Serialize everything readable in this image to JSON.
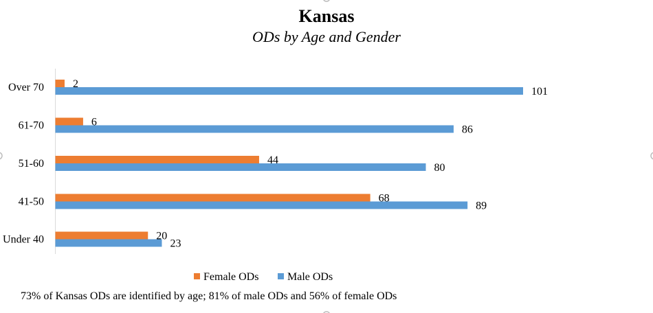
{
  "chart_data": {
    "type": "bar",
    "orientation": "horizontal",
    "title": "Kansas",
    "subtitle": "ODs by Age and Gender",
    "categories": [
      "Under 40",
      "41-50",
      "51-60",
      "61-70",
      "Over 70"
    ],
    "series": [
      {
        "name": "Female ODs",
        "color": "#ED7D31",
        "values": [
          20,
          68,
          44,
          6,
          2
        ]
      },
      {
        "name": "Male ODs",
        "color": "#5B9BD5",
        "values": [
          23,
          89,
          80,
          86,
          101
        ]
      }
    ],
    "xlim": [
      0,
      101
    ],
    "grid": false,
    "legend_position": "bottom",
    "footnote": "73% of Kansas ODs are identified by age; 81% of male ODs and 56% of female ODs"
  }
}
